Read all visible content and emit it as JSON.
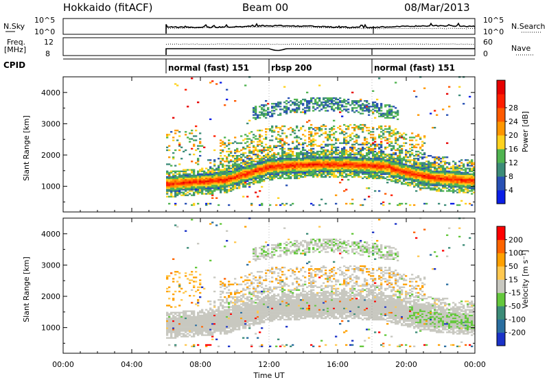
{
  "header": {
    "radar": "Hokkaido (fitACF)",
    "beam": "Beam 00",
    "date": "08/Mar/2013"
  },
  "colors": {
    "power_scale": [
      "#0a1ee6",
      "#2850b4",
      "#3c8c78",
      "#50b450",
      "#ffd21e",
      "#ff9600",
      "#ff5a00",
      "#ff1e00",
      "#e60000"
    ],
    "velocity_scale": [
      "#1a32c8",
      "#2a6ea0",
      "#3c8c78",
      "#64c83c",
      "#c8c8c0",
      "#ffc850",
      "#ffa000",
      "#ff6400",
      "#ff0000"
    ]
  },
  "chart_data": [
    {
      "type": "line",
      "panel": "noise",
      "left_label": "N.Sky",
      "right_label": "N.Search",
      "left_ticks": [
        "10^5",
        "10^0"
      ],
      "right_ticks": [
        "10^5",
        "10^0"
      ],
      "yscale": "log",
      "ylim": [
        1,
        100000
      ],
      "x_start_hour": 6.0
    },
    {
      "type": "line",
      "panel": "frequency",
      "left_label_top": "Freq.",
      "left_label_bottom": "[MHz]",
      "right_label": "Nave",
      "left_ticks": [
        "12",
        "8"
      ],
      "right_ticks": [
        "60",
        "0"
      ],
      "ylim": [
        8,
        12
      ],
      "x_start_hour": 6.0
    },
    {
      "type": "table",
      "panel": "cpid",
      "label": "CPID",
      "segments": [
        {
          "start_hour": 6.0,
          "name": "normal (fast) 151"
        },
        {
          "start_hour": 12.0,
          "name": "rbsp 200"
        },
        {
          "start_hour": 18.0,
          "name": "normal (fast) 151"
        }
      ]
    },
    {
      "type": "heatmap",
      "panel": "power",
      "ylabel": "Slant Range [km]",
      "y_ticks": [
        1000,
        2000,
        3000,
        4000
      ],
      "ylim": [
        180,
        4500
      ],
      "colorbar_label": "Power [dB]",
      "colorbar_ticks": [
        4,
        8,
        12,
        16,
        20,
        24,
        28
      ],
      "clim": [
        0,
        32
      ]
    },
    {
      "type": "heatmap",
      "panel": "velocity",
      "ylabel": "Slant Range [km]",
      "y_ticks": [
        1000,
        2000,
        3000,
        4000
      ],
      "ylim": [
        180,
        4500
      ],
      "colorbar_label": "Velocity [m s⁻¹]",
      "colorbar_ticks": [
        200,
        100,
        50,
        15,
        -15,
        -50,
        -100,
        -200
      ]
    }
  ],
  "xaxis": {
    "label": "Time UT",
    "ticks": [
      "00:00",
      "04:00",
      "08:00",
      "12:00",
      "16:00",
      "20:00",
      "00:00"
    ],
    "tick_hours": [
      0,
      4,
      8,
      12,
      16,
      20,
      24
    ],
    "xlim": [
      0,
      24
    ]
  }
}
